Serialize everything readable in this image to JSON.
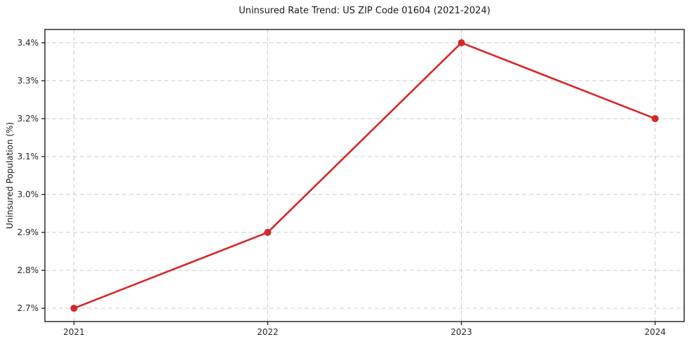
{
  "chart_data": {
    "type": "line",
    "title": "Uninsured Rate Trend: US ZIP Code 01604 (2021-2024)",
    "xlabel": "",
    "ylabel": "Uninsured Population (%)",
    "x": [
      2021,
      2022,
      2023,
      2024
    ],
    "values": [
      2.7,
      2.9,
      3.4,
      3.2
    ],
    "x_tick_labels": [
      "2021",
      "2022",
      "2023",
      "2024"
    ],
    "y_ticks": [
      2.7,
      2.8,
      2.9,
      3.0,
      3.1,
      3.2,
      3.3,
      3.4
    ],
    "y_tick_labels": [
      "2.7%",
      "2.8%",
      "2.9%",
      "3.0%",
      "3.1%",
      "3.2%",
      "3.3%",
      "3.4%"
    ],
    "xlim": [
      2020.85,
      2024.15
    ],
    "ylim": [
      2.665,
      3.435
    ],
    "grid": true,
    "legend": "none",
    "colors": {
      "line": "#d62728",
      "marker": "#d62728",
      "grid": "#cccccc",
      "spine": "#1c1c1c",
      "text": "#262626",
      "background": "#ffffff"
    },
    "line_width": 2.6,
    "marker_radius": 5
  }
}
